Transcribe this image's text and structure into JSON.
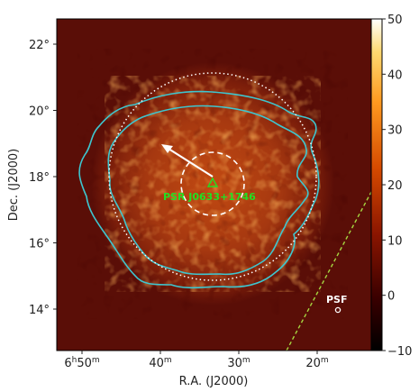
{
  "chart_data": {
    "type": "heatmap",
    "title": "",
    "xlabel": "R.A. (J2000)",
    "ylabel": "Dec. (J2000)",
    "x_tick_labels": [
      "6h50m",
      "40m",
      "30m",
      "20m"
    ],
    "x_tick_hours": [
      "6",
      "",
      "",
      ""
    ],
    "x_tick_minutes": [
      "50",
      "40",
      "30",
      "20"
    ],
    "x_tick_values_min": [
      410,
      400,
      390,
      380
    ],
    "y_tick_labels": [
      "14°",
      "16°",
      "18°",
      "20°",
      "22°"
    ],
    "y_tick_values": [
      14,
      16,
      18,
      20,
      22
    ],
    "colorbar": {
      "ticks": [
        "−10",
        "0",
        "10",
        "20",
        "30",
        "40",
        "50"
      ],
      "tick_values": [
        -10,
        0,
        10,
        20,
        30,
        40,
        50
      ],
      "range": [
        -10,
        50
      ],
      "colormap": "afmhot"
    },
    "annotations": {
      "source_label": "PSR J0633+1746",
      "psf_label": "PSF"
    },
    "colors": {
      "background_map": "#5a0e07",
      "contour": "#3ec6cf",
      "source_marker": "#22e022",
      "circle": "#ffffff",
      "galactic_plane": "#a6d640"
    }
  }
}
